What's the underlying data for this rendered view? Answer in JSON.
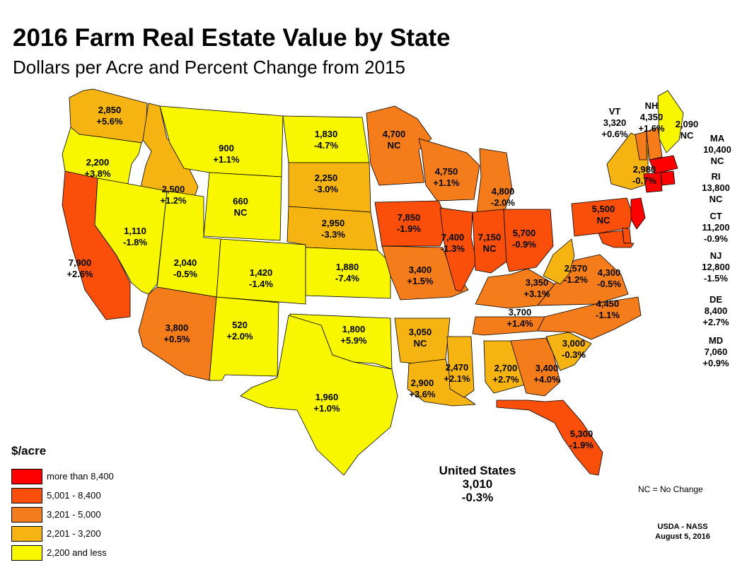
{
  "title": "2016 Farm Real Estate Value by State",
  "subtitle": "Dollars per Acre and Percent Change from 2015",
  "colors": {
    "tier1": "#ff0000",
    "tier2": "#f94f0b",
    "tier3": "#f47c1a",
    "tier4": "#f6b412",
    "tier5": "#f8f700"
  },
  "legend": {
    "title": "$/acre",
    "items": [
      {
        "label": "more than 8,400",
        "color": "#ff0000"
      },
      {
        "label": "5,001 - 8,400",
        "color": "#f94f0b"
      },
      {
        "label": "3,201 - 5,000",
        "color": "#f47c1a"
      },
      {
        "label": "2,201 - 3,200",
        "color": "#f6b412"
      },
      {
        "label": "2,200 and less",
        "color": "#f8f700"
      }
    ]
  },
  "states": [
    {
      "abbr": "WA",
      "value": "2,850",
      "change": "+5.6%"
    },
    {
      "abbr": "OR",
      "value": "2,200",
      "change": "+3.8%"
    },
    {
      "abbr": "CA",
      "value": "7,900",
      "change": "+2.6%"
    },
    {
      "abbr": "ID",
      "value": "2,500",
      "change": "+1.2%"
    },
    {
      "abbr": "NV",
      "value": "1,110",
      "change": "-1.8%"
    },
    {
      "abbr": "MT",
      "value": "900",
      "change": "+1.1%"
    },
    {
      "abbr": "WY",
      "value": "660",
      "change": "NC"
    },
    {
      "abbr": "UT",
      "value": "2,040",
      "change": "-0.5%"
    },
    {
      "abbr": "CO",
      "value": "1,420",
      "change": "-1.4%"
    },
    {
      "abbr": "AZ",
      "value": "3,800",
      "change": "+0.5%"
    },
    {
      "abbr": "NM",
      "value": "520",
      "change": "+2.0%"
    },
    {
      "abbr": "ND",
      "value": "1,830",
      "change": "-4.7%"
    },
    {
      "abbr": "SD",
      "value": "2,250",
      "change": "-3.0%"
    },
    {
      "abbr": "NE",
      "value": "2,950",
      "change": "-3.3%"
    },
    {
      "abbr": "KS",
      "value": "1,880",
      "change": "-7.4%"
    },
    {
      "abbr": "OK",
      "value": "1,800",
      "change": "+5.9%"
    },
    {
      "abbr": "TX",
      "value": "1,960",
      "change": "+1.0%"
    },
    {
      "abbr": "MN",
      "value": "4,700",
      "change": "NC"
    },
    {
      "abbr": "IA",
      "value": "7,850",
      "change": "-1.9%"
    },
    {
      "abbr": "MO",
      "value": "3,400",
      "change": "+1.5%"
    },
    {
      "abbr": "AR",
      "value": "3,050",
      "change": "NC"
    },
    {
      "abbr": "LA",
      "value": "2,900",
      "change": "+3.6%"
    },
    {
      "abbr": "WI",
      "value": "4,750",
      "change": "+1.1%"
    },
    {
      "abbr": "IL",
      "value": "7,400",
      "change": "-1.3%"
    },
    {
      "abbr": "MI",
      "value": "4,800",
      "change": "-2.0%"
    },
    {
      "abbr": "IN",
      "value": "7,150",
      "change": "NC"
    },
    {
      "abbr": "OH",
      "value": "5,700",
      "change": "-0.9%"
    },
    {
      "abbr": "KY",
      "value": "3,350",
      "change": "+3.1%"
    },
    {
      "abbr": "TN",
      "value": "3,700",
      "change": "+1.4%"
    },
    {
      "abbr": "MS",
      "value": "2,470",
      "change": "+2.1%"
    },
    {
      "abbr": "AL",
      "value": "2,700",
      "change": "+2.7%"
    },
    {
      "abbr": "GA",
      "value": "3,400",
      "change": "+4.0%"
    },
    {
      "abbr": "FL",
      "value": "5,300",
      "change": "-1.9%"
    },
    {
      "abbr": "SC",
      "value": "3,000",
      "change": "-0.3%"
    },
    {
      "abbr": "NC",
      "value": "4,450",
      "change": "-1.1%"
    },
    {
      "abbr": "VA",
      "value": "4,300",
      "change": "-0.5%"
    },
    {
      "abbr": "WV",
      "value": "2,570",
      "change": "-1.2%"
    },
    {
      "abbr": "PA",
      "value": "5,500",
      "change": "NC"
    },
    {
      "abbr": "NY",
      "value": "2,980",
      "change": "-0.7%"
    },
    {
      "abbr": "VT",
      "value": "3,320",
      "change": "+0.6%"
    },
    {
      "abbr": "NH",
      "value": "4,350",
      "change": "+1.6%"
    },
    {
      "abbr": "ME",
      "value": "2,090",
      "change": "NC"
    },
    {
      "abbr": "MA",
      "value": "10,400",
      "change": "NC"
    },
    {
      "abbr": "RI",
      "value": "13,800",
      "change": "NC"
    },
    {
      "abbr": "CT",
      "value": "11,200",
      "change": "-0.9%"
    },
    {
      "abbr": "NJ",
      "value": "12,800",
      "change": "-1.5%"
    },
    {
      "abbr": "DE",
      "value": "8,400",
      "change": "+2.7%"
    },
    {
      "abbr": "MD",
      "value": "7,060",
      "change": "+0.9%"
    }
  ],
  "us_total": {
    "label": "United States",
    "value": "3,010",
    "change": "-0.3%"
  },
  "nc_note": "NC = No Change",
  "source": {
    "agency": "USDA - NASS",
    "date": "August 5, 2016"
  }
}
